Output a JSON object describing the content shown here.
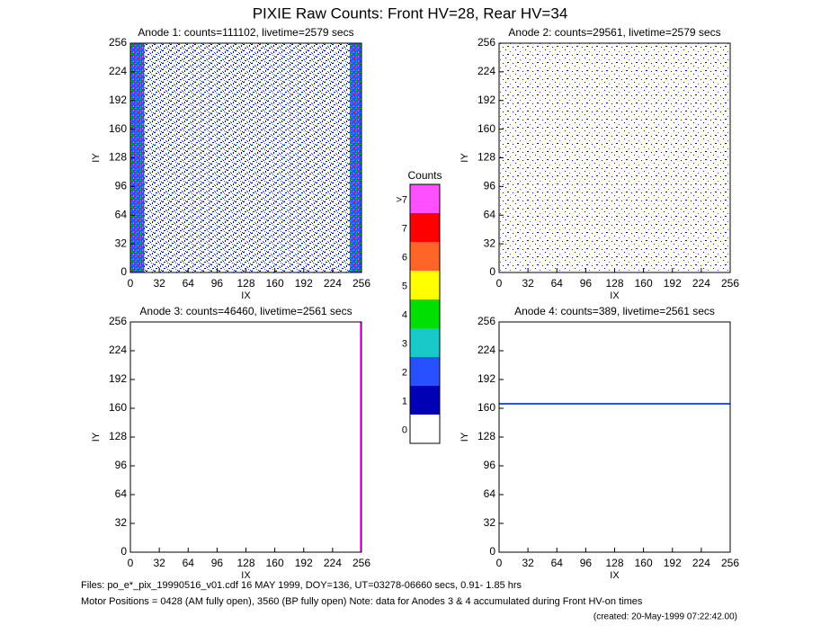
{
  "title": "PIXIE Raw Counts:  Front HV=28, Rear HV=34",
  "chart_data": [
    {
      "type": "heatmap",
      "title": "Anode 1: counts=111102, livetime=2579 secs",
      "xlabel": "IX",
      "ylabel": "IY",
      "xlim": [
        0,
        256
      ],
      "ylim": [
        0,
        256
      ],
      "xticks": [
        0,
        32,
        64,
        96,
        128,
        160,
        192,
        224,
        256
      ],
      "yticks": [
        0,
        32,
        64,
        96,
        128,
        160,
        192,
        224,
        256
      ]
    },
    {
      "type": "heatmap",
      "title": "Anode 2: counts=29561, livetime=2579 secs",
      "xlabel": "IX",
      "ylabel": "IY",
      "xlim": [
        0,
        256
      ],
      "ylim": [
        0,
        256
      ],
      "xticks": [
        0,
        32,
        64,
        96,
        128,
        160,
        192,
        224,
        256
      ],
      "yticks": [
        0,
        32,
        64,
        96,
        128,
        160,
        192,
        224,
        256
      ]
    },
    {
      "type": "heatmap",
      "title": "Anode 3: counts=46460, livetime=2561 secs",
      "xlabel": "IX",
      "ylabel": "IY",
      "xlim": [
        0,
        256
      ],
      "ylim": [
        0,
        256
      ],
      "xticks": [
        0,
        32,
        64,
        96,
        128,
        160,
        192,
        224,
        256
      ],
      "yticks": [
        0,
        32,
        64,
        96,
        128,
        160,
        192,
        224,
        256
      ]
    },
    {
      "type": "heatmap",
      "title": "Anode 4: counts=389, livetime=2561 secs",
      "xlabel": "IX",
      "ylabel": "IY",
      "xlim": [
        0,
        256
      ],
      "ylim": [
        0,
        256
      ],
      "xticks": [
        0,
        32,
        64,
        96,
        128,
        160,
        192,
        224,
        256
      ],
      "yticks": [
        0,
        32,
        64,
        96,
        128,
        160,
        192,
        224,
        256
      ]
    },
    {
      "type": "colorbar",
      "title": "Counts",
      "categories": [
        "0",
        "1",
        "2",
        "3",
        "4",
        "5",
        "6",
        "7",
        ">7"
      ],
      "colors": [
        "#ffffff",
        "#0000b4",
        "#2850ff",
        "#19c8c8",
        "#00e000",
        "#ffff00",
        "#ff6428",
        "#ff0000",
        "#ff50ff"
      ]
    }
  ],
  "footer": [
    "Files: po_e*_pix_19990516_v01.cdf    16 MAY 1999, DOY=136, UT=03278-06660 secs,  0.91- 1.85 hrs",
    "Motor Positions = 0428 (AM fully open), 3560 (BP fully open)    Note: data for Anodes 3 & 4 accumulated during Front HV-on times",
    "(created: 20-May-1999 07:22:42.00)"
  ]
}
